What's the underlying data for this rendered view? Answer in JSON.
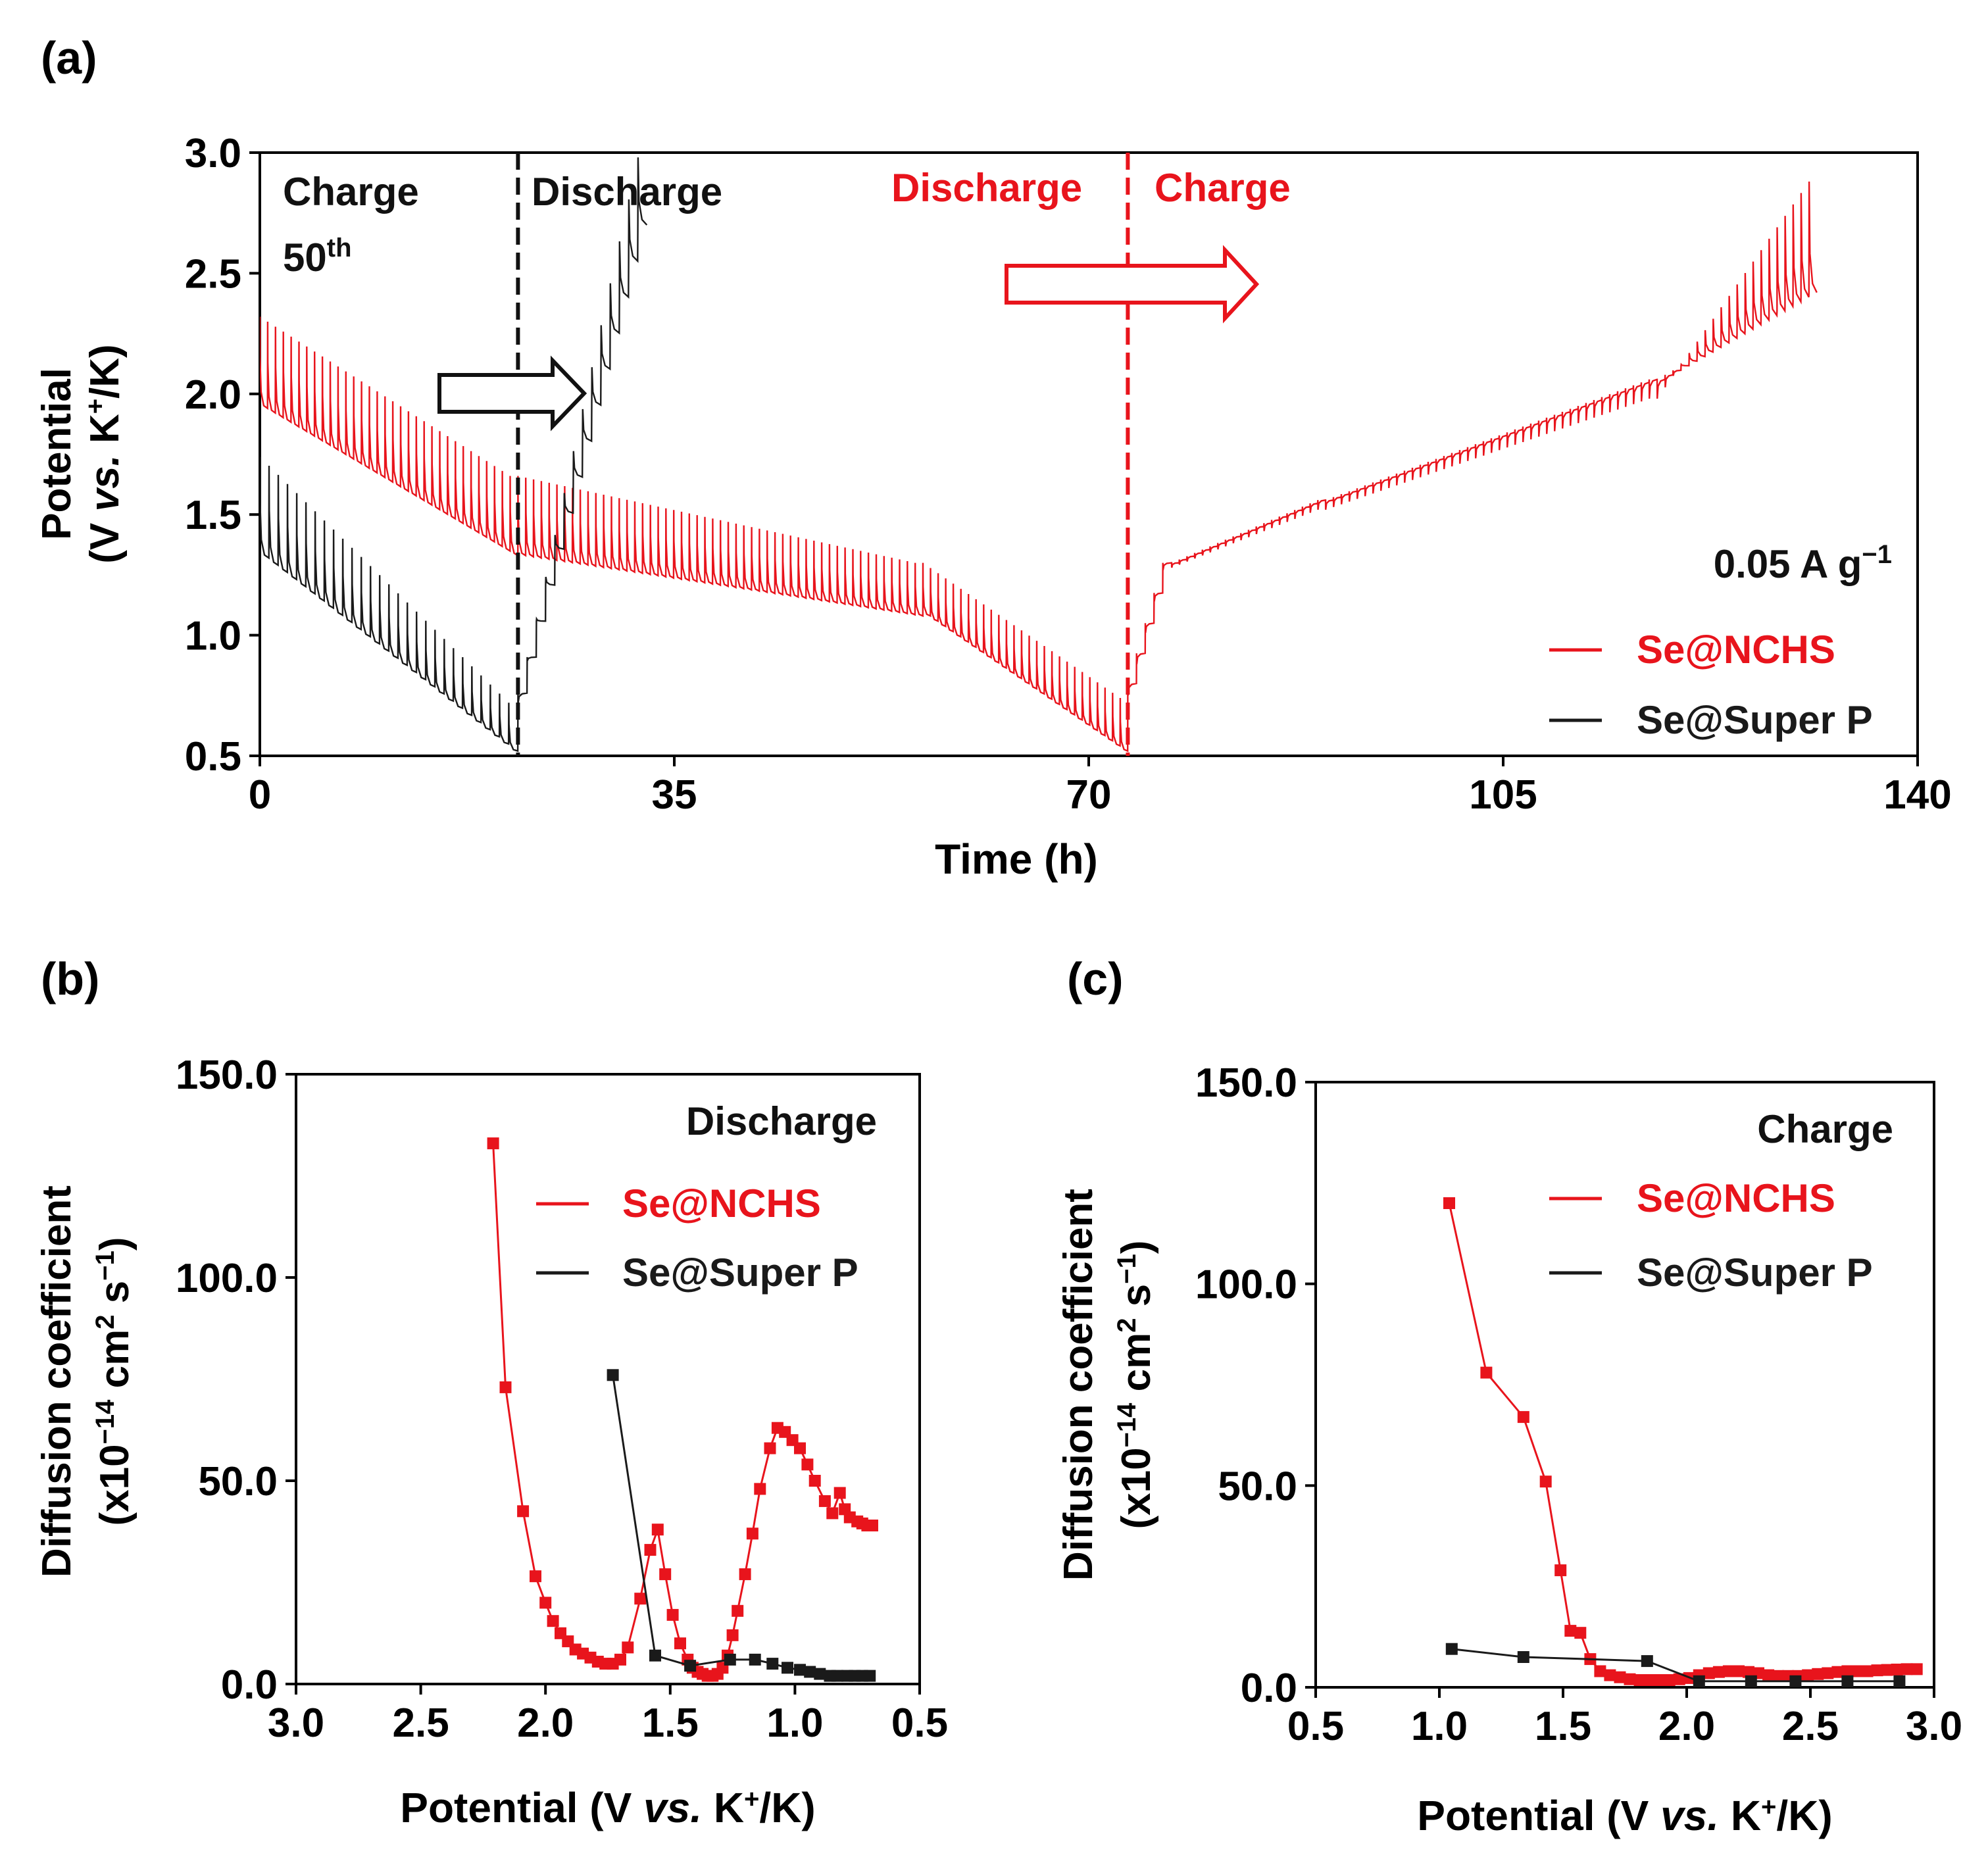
{
  "chart_data": [
    {
      "panel": "(a)",
      "type": "line",
      "title": "",
      "xlabel": "Time (h)",
      "ylabel_parts": {
        "l1": "Potential",
        "l2a": "(V ",
        "l2b": "vs.",
        "l2c": " K",
        "l2d": "+",
        "l2e": "/K)"
      },
      "xlim": [
        0,
        140
      ],
      "ylim": [
        0.5,
        3.0
      ],
      "xticks": [
        0,
        35,
        70,
        105,
        140
      ],
      "yticks": [
        0.5,
        1.0,
        1.5,
        2.0,
        2.5,
        3.0
      ],
      "ytick_labels": [
        "0.5",
        "1.0",
        "1.5",
        "2.0",
        "2.5",
        "3.0"
      ],
      "current_density_label": {
        "a": "0.05 A g",
        "b": "−1"
      },
      "annotations": {
        "black_charge": "Charge",
        "cycle_num": "50",
        "cycle_sup": "th",
        "black_discharge": "Discharge",
        "red_discharge": "Discharge",
        "red_charge": "Charge"
      },
      "black_switch_time": 21.8,
      "red_switch_time": 73.3,
      "series": [
        {
          "name": "Se@NCHS",
          "color": "#e8141c",
          "pulses": [
            {
              "t0": 0,
              "t1": 21.8,
              "n": 33,
              "relax_start": 2.32,
              "relax_end": 1.66,
              "low_start": 1.94,
              "low_end": 1.33
            },
            {
              "t0": 21.8,
              "t1": 56,
              "n": 52,
              "relax_start": 1.66,
              "relax_end": 1.3,
              "low_start": 1.33,
              "low_end": 1.08
            },
            {
              "t0": 56,
              "t1": 73.3,
              "n": 27,
              "relax_start": 1.3,
              "relax_end": 0.74,
              "low_start": 1.08,
              "low_end": 0.52
            },
            {
              "t0": 73.3,
              "t1": 77,
              "n": 5,
              "relax_start": 0.8,
              "relax_end": 1.3,
              "low_start": 0.75,
              "low_end": 1.27,
              "inverted": true
            },
            {
              "t0": 77,
              "t1": 90,
              "n": 20,
              "relax_start": 1.3,
              "relax_end": 1.56,
              "low_start": 1.28,
              "low_end": 1.52,
              "inverted": true
            },
            {
              "t0": 90,
              "t1": 118,
              "n": 42,
              "relax_start": 1.56,
              "relax_end": 2.06,
              "low_start": 1.52,
              "low_end": 1.98,
              "inverted": true
            },
            {
              "t0": 118,
              "t1": 131.5,
              "n": 20,
              "relax_start": 2.06,
              "relax_end": 2.42,
              "low_start": 1.98,
              "low_end": 2.88,
              "inverted": true
            }
          ]
        },
        {
          "name": "Se@Super P",
          "color": "#1a1a1a",
          "pulses": [
            {
              "t0": 0,
              "t1": 21.8,
              "n": 28,
              "relax_start": 1.74,
              "relax_end": 0.72,
              "low_start": 1.32,
              "low_end": 0.52
            },
            {
              "t0": 21.8,
              "t1": 32.7,
              "n": 14,
              "relax_start": 0.76,
              "relax_end": 2.7,
              "low_start": 0.72,
              "low_end": 2.98,
              "inverted": true
            }
          ]
        }
      ]
    },
    {
      "panel": "(b)",
      "type": "line",
      "title": "",
      "xlabel_parts": {
        "a": "Potential (V ",
        "b": "vs.",
        "c": " K",
        "d": "+",
        "e": "/K)"
      },
      "ylabel_parts": {
        "l1": "Diffusion coefficient",
        "l2a": "(x10",
        "l2b": "−14",
        "l2c": " cm",
        "l2d": "2",
        "l2e": " s",
        "l2f": "−1",
        "l2g": ")"
      },
      "xlim": [
        3.0,
        0.5
      ],
      "ylim": [
        0,
        150
      ],
      "xticks": [
        3.0,
        2.5,
        2.0,
        1.5,
        1.0,
        0.5
      ],
      "xtick_labels": [
        "3.0",
        "2.5",
        "2.0",
        "1.5",
        "1.0",
        "0.5"
      ],
      "yticks": [
        0,
        50,
        100,
        150
      ],
      "ytick_labels": [
        "0.0",
        "50.0",
        "100.0",
        "150.0"
      ],
      "legend_title": "Discharge",
      "series": [
        {
          "name": "Se@NCHS",
          "color": "#e8141c",
          "x": [
            2.21,
            2.16,
            2.09,
            2.04,
            2.0,
            1.97,
            1.94,
            1.91,
            1.88,
            1.85,
            1.82,
            1.79,
            1.76,
            1.73,
            1.7,
            1.67,
            1.62,
            1.58,
            1.55,
            1.52,
            1.49,
            1.46,
            1.43,
            1.41,
            1.39,
            1.37,
            1.35,
            1.33,
            1.31,
            1.29,
            1.27,
            1.25,
            1.23,
            1.2,
            1.17,
            1.14,
            1.1,
            1.07,
            1.04,
            1.01,
            0.98,
            0.95,
            0.92,
            0.88,
            0.85,
            0.82,
            0.8,
            0.78,
            0.75,
            0.73,
            0.71,
            0.69
          ],
          "y": [
            133,
            73,
            42.5,
            26.5,
            20,
            15.5,
            12.5,
            10.5,
            8.5,
            7.5,
            6.5,
            5.5,
            5,
            5,
            6,
            9,
            21,
            33,
            38,
            27,
            17,
            10,
            6,
            4,
            3,
            2.5,
            2,
            2,
            2.5,
            4,
            7,
            12,
            18,
            27,
            37,
            48,
            58,
            63,
            62,
            60,
            58,
            54,
            50,
            45,
            42,
            47,
            43,
            41,
            40,
            39.5,
            39,
            39
          ]
        },
        {
          "name": "Se@Super P",
          "color": "#1a1a1a",
          "x": [
            1.73,
            1.56,
            1.42,
            1.26,
            1.16,
            1.09,
            1.03,
            0.98,
            0.94,
            0.9,
            0.86,
            0.83,
            0.79,
            0.76,
            0.73,
            0.7
          ],
          "y": [
            76,
            7,
            4.5,
            6,
            6,
            5,
            4,
            3.5,
            3,
            2.5,
            2,
            2,
            2,
            2,
            2,
            2
          ]
        }
      ]
    },
    {
      "panel": "(c)",
      "type": "line",
      "title": "",
      "xlabel_parts": {
        "a": "Potential (V ",
        "b": "vs.",
        "c": " K",
        "d": "+",
        "e": "/K)"
      },
      "ylabel_parts": {
        "l1": "Diffusion coefficient",
        "l2a": "(x10",
        "l2b": "−14",
        "l2c": " cm",
        "l2d": "2",
        "l2e": " s",
        "l2f": "−1",
        "l2g": ")"
      },
      "xlim": [
        0.5,
        3.0
      ],
      "ylim": [
        0,
        150
      ],
      "xticks": [
        0.5,
        1.0,
        1.5,
        2.0,
        2.5,
        3.0
      ],
      "xtick_labels": [
        "0.5",
        "1.0",
        "1.5",
        "2.0",
        "2.5",
        "3.0"
      ],
      "yticks": [
        0,
        50,
        100,
        150
      ],
      "ytick_labels": [
        "0.0",
        "50.0",
        "100.0",
        "150.0"
      ],
      "legend_title": "Charge",
      "series": [
        {
          "name": "Se@NCHS",
          "color": "#e8141c",
          "x": [
            1.04,
            1.19,
            1.34,
            1.43,
            1.49,
            1.53,
            1.57,
            1.61,
            1.65,
            1.69,
            1.73,
            1.77,
            1.81,
            1.85,
            1.89,
            1.93,
            1.97,
            2.01,
            2.05,
            2.09,
            2.13,
            2.17,
            2.21,
            2.25,
            2.29,
            2.33,
            2.37,
            2.41,
            2.45,
            2.49,
            2.53,
            2.57,
            2.61,
            2.65,
            2.69,
            2.73,
            2.77,
            2.81,
            2.85,
            2.89,
            2.93
          ],
          "y": [
            120,
            78,
            67,
            51,
            29,
            14,
            13.5,
            7,
            4,
            3,
            2.5,
            2,
            1.8,
            1.8,
            1.8,
            1.8,
            2,
            2.3,
            3,
            3.5,
            3.8,
            4,
            4,
            3.8,
            3.5,
            3,
            2.8,
            2.8,
            2.8,
            3,
            3.3,
            3.5,
            3.8,
            4,
            4,
            4,
            4.2,
            4.3,
            4.4,
            4.5,
            4.5
          ]
        },
        {
          "name": "Se@Super P",
          "color": "#1a1a1a",
          "x": [
            1.05,
            1.34,
            1.84,
            2.05,
            2.26,
            2.44,
            2.65,
            2.86
          ],
          "y": [
            9.5,
            7.5,
            6.5,
            1.5,
            1.5,
            1.5,
            1.5,
            1.5
          ]
        }
      ]
    }
  ]
}
